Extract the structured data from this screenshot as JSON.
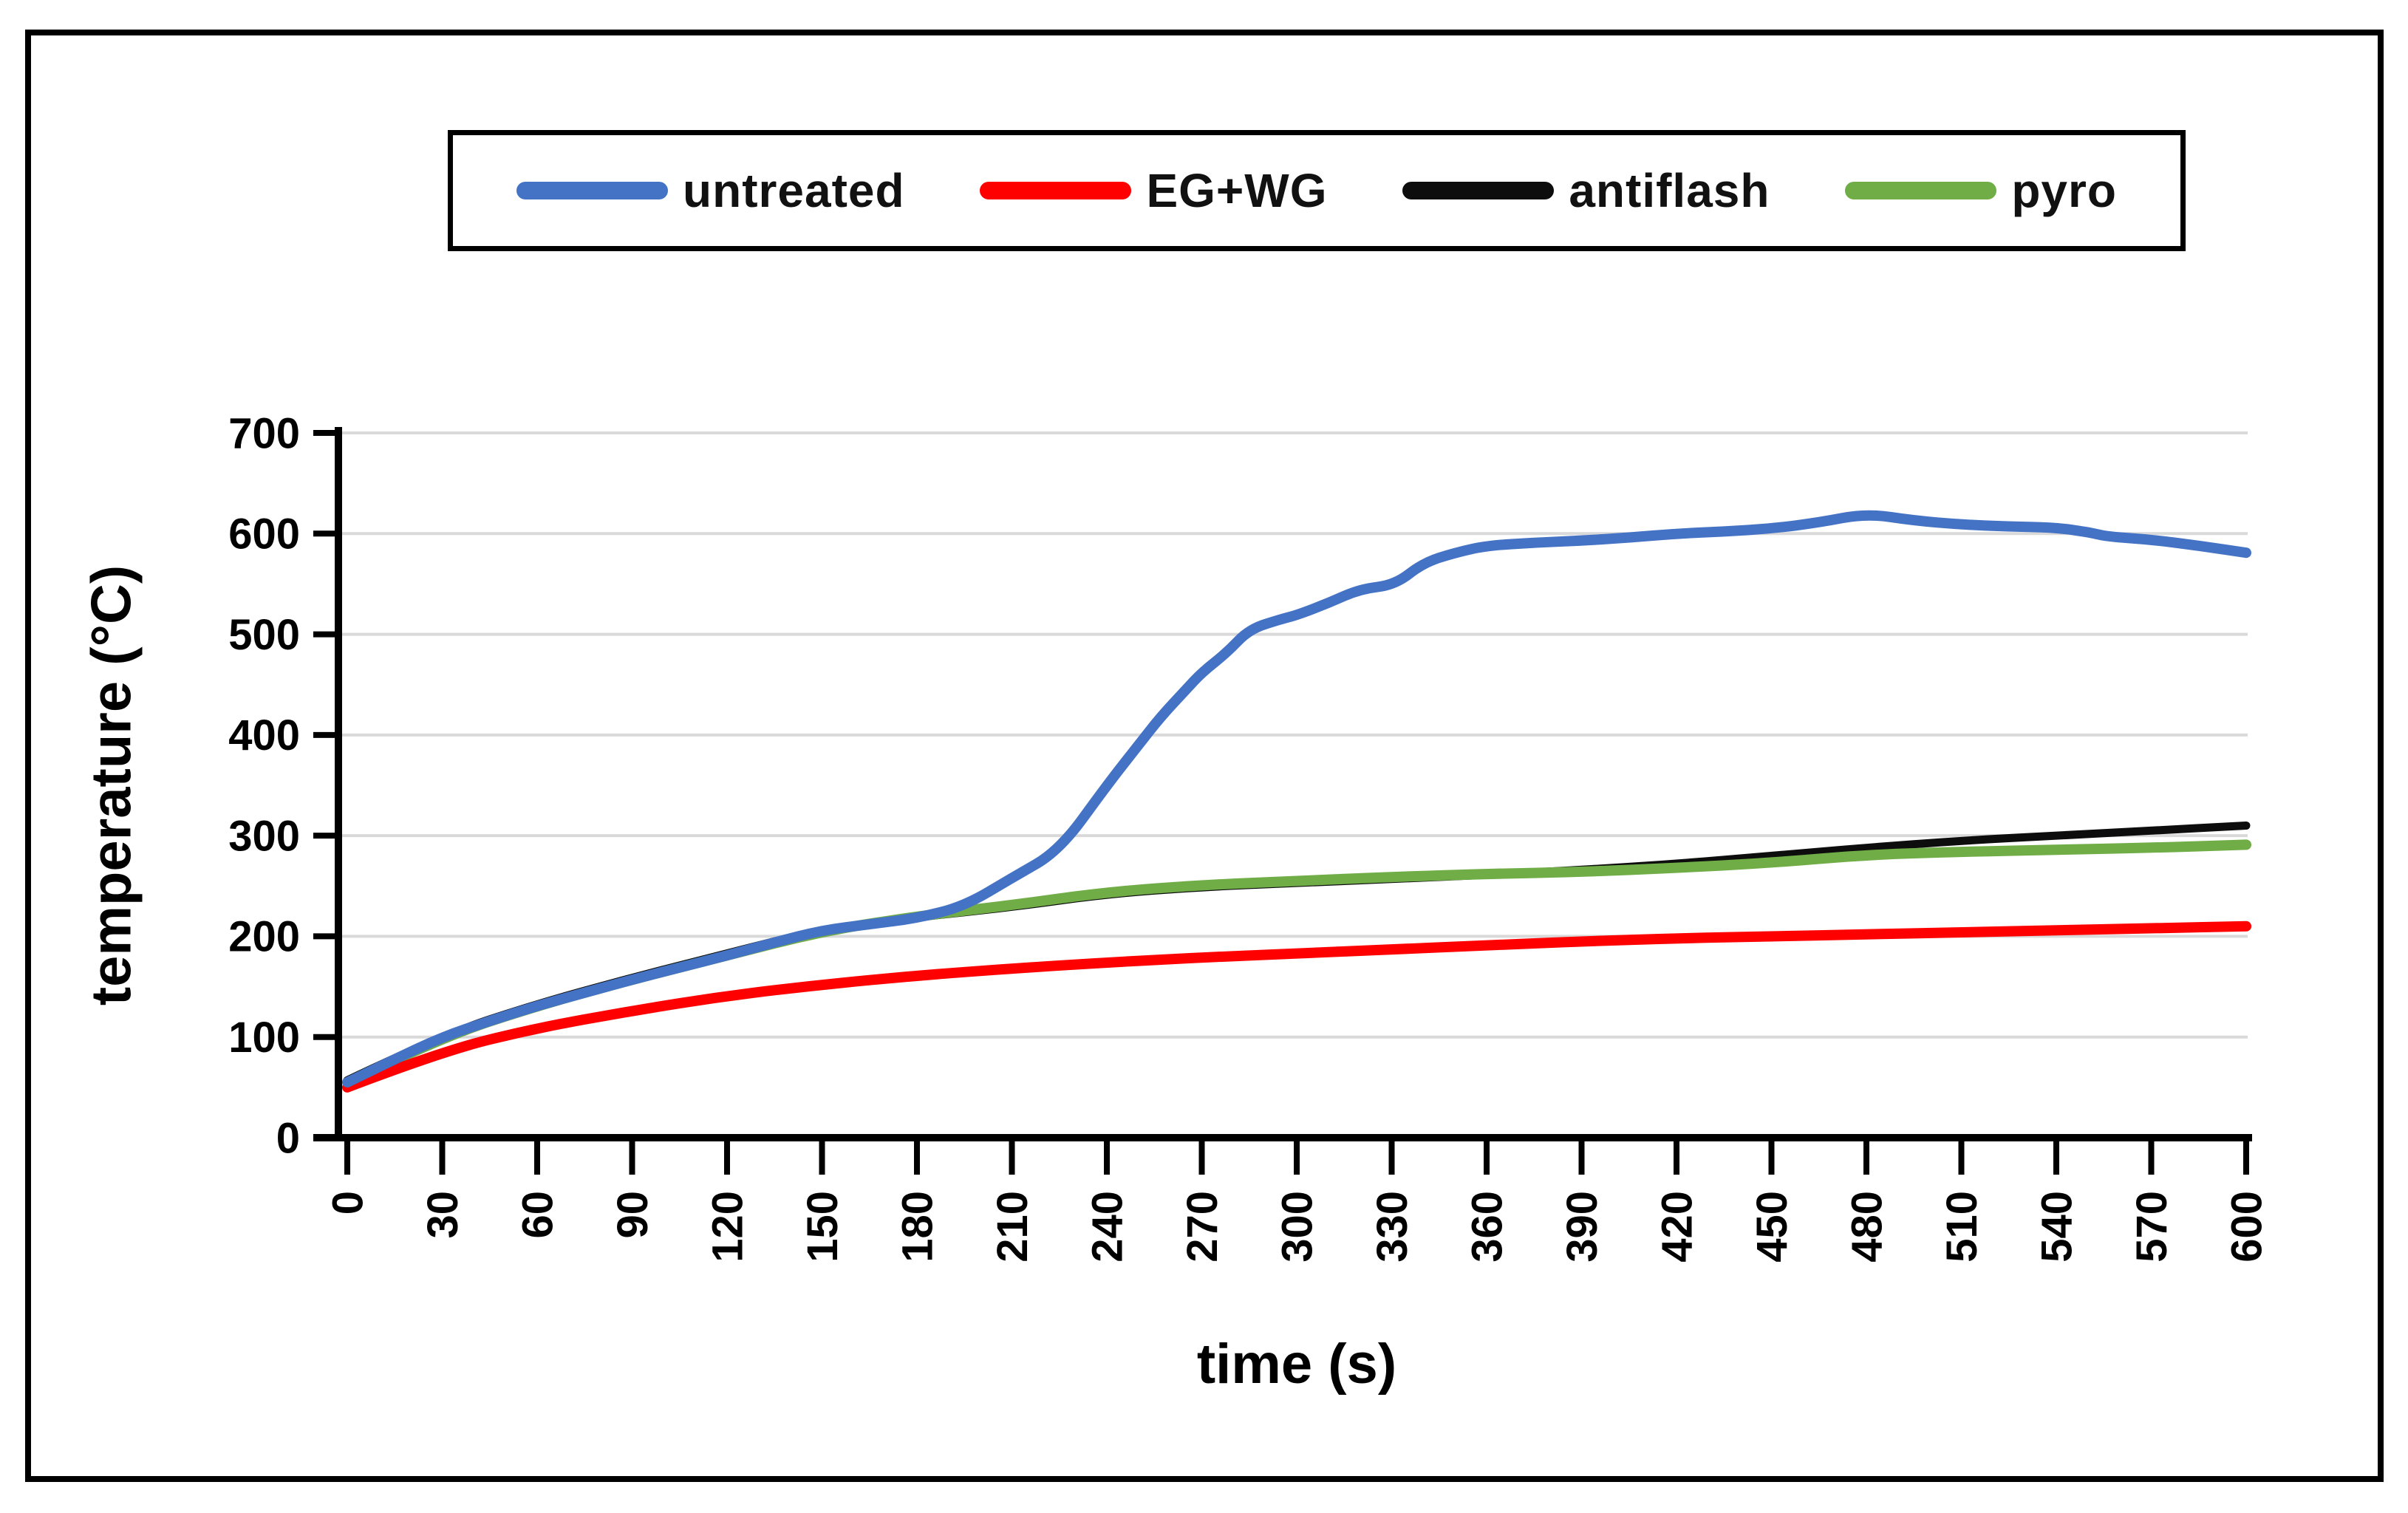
{
  "figure": {
    "background": "#ffffff",
    "border_color": "#000000"
  },
  "chart_data": {
    "type": "line",
    "title": "",
    "xlabel": "time (s)",
    "ylabel": "temperature (°C)",
    "xlim": [
      0,
      600
    ],
    "ylim": [
      0,
      700
    ],
    "x_ticks": [
      0,
      30,
      60,
      90,
      120,
      150,
      180,
      210,
      240,
      270,
      300,
      330,
      360,
      390,
      420,
      450,
      480,
      510,
      540,
      570,
      600
    ],
    "y_ticks": [
      0,
      100,
      200,
      300,
      400,
      500,
      600,
      700
    ],
    "grid": true,
    "gridline_color": "#d9d9d9",
    "axis_color": "#000000",
    "legend_position": "top",
    "series": [
      {
        "name": "untreated",
        "color": "#4472c4",
        "stroke_width": 14,
        "points": [
          [
            0,
            55
          ],
          [
            15,
            78
          ],
          [
            30,
            100
          ],
          [
            45,
            116
          ],
          [
            60,
            131
          ],
          [
            75,
            144
          ],
          [
            90,
            157
          ],
          [
            105,
            169
          ],
          [
            120,
            181
          ],
          [
            135,
            194
          ],
          [
            150,
            206
          ],
          [
            165,
            212
          ],
          [
            180,
            218
          ],
          [
            195,
            230
          ],
          [
            210,
            258
          ],
          [
            225,
            285
          ],
          [
            240,
            350
          ],
          [
            250,
            390
          ],
          [
            257,
            418
          ],
          [
            265,
            445
          ],
          [
            270,
            462
          ],
          [
            278,
            482
          ],
          [
            285,
            505
          ],
          [
            295,
            515
          ],
          [
            300,
            519
          ],
          [
            310,
            531
          ],
          [
            320,
            545
          ],
          [
            331,
            549
          ],
          [
            340,
            571
          ],
          [
            350,
            581
          ],
          [
            360,
            588
          ],
          [
            375,
            591
          ],
          [
            390,
            593
          ],
          [
            405,
            596
          ],
          [
            420,
            600
          ],
          [
            435,
            602
          ],
          [
            450,
            605
          ],
          [
            465,
            611
          ],
          [
            480,
            620
          ],
          [
            495,
            613
          ],
          [
            510,
            609
          ],
          [
            525,
            607
          ],
          [
            540,
            606
          ],
          [
            551,
            601
          ],
          [
            556,
            597
          ],
          [
            570,
            594
          ],
          [
            585,
            588
          ],
          [
            600,
            581
          ]
        ]
      },
      {
        "name": "EG+WG",
        "color": "#ff0000",
        "stroke_width": 14,
        "points": [
          [
            0,
            50
          ],
          [
            30,
            86
          ],
          [
            60,
            109
          ],
          [
            90,
            126
          ],
          [
            120,
            141
          ],
          [
            150,
            152
          ],
          [
            180,
            161
          ],
          [
            210,
            168
          ],
          [
            240,
            174
          ],
          [
            270,
            179
          ],
          [
            300,
            183
          ],
          [
            330,
            187
          ],
          [
            360,
            191
          ],
          [
            390,
            195
          ],
          [
            420,
            198
          ],
          [
            450,
            200
          ],
          [
            480,
            202
          ],
          [
            510,
            204
          ],
          [
            540,
            206
          ],
          [
            570,
            208
          ],
          [
            600,
            210
          ]
        ]
      },
      {
        "name": "antiflash",
        "color": "#0d0d0d",
        "stroke_width": 11,
        "points": [
          [
            0,
            57
          ],
          [
            30,
            102
          ],
          [
            60,
            133
          ],
          [
            90,
            159
          ],
          [
            120,
            183
          ],
          [
            150,
            207
          ],
          [
            180,
            219
          ],
          [
            210,
            229
          ],
          [
            240,
            242
          ],
          [
            270,
            249
          ],
          [
            300,
            253
          ],
          [
            330,
            257
          ],
          [
            360,
            261
          ],
          [
            390,
            266
          ],
          [
            420,
            272
          ],
          [
            450,
            280
          ],
          [
            480,
            288
          ],
          [
            510,
            295
          ],
          [
            540,
            300
          ],
          [
            570,
            305
          ],
          [
            600,
            310
          ]
        ]
      },
      {
        "name": "pyro",
        "color": "#70ad47",
        "stroke_width": 14,
        "points": [
          [
            0,
            55
          ],
          [
            30,
            100
          ],
          [
            60,
            131
          ],
          [
            90,
            157
          ],
          [
            120,
            181
          ],
          [
            150,
            205
          ],
          [
            180,
            220
          ],
          [
            210,
            231
          ],
          [
            240,
            244
          ],
          [
            270,
            251
          ],
          [
            300,
            255
          ],
          [
            330,
            259
          ],
          [
            360,
            262
          ],
          [
            390,
            264
          ],
          [
            420,
            268
          ],
          [
            450,
            273
          ],
          [
            480,
            281
          ],
          [
            510,
            284
          ],
          [
            540,
            286
          ],
          [
            570,
            288
          ],
          [
            600,
            291
          ]
        ]
      }
    ]
  }
}
